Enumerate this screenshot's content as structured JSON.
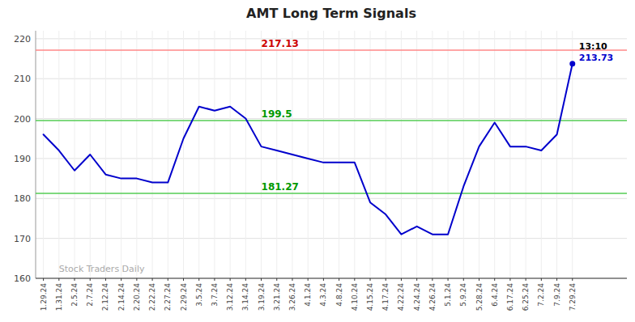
{
  "chart_data": {
    "type": "line",
    "title": "AMT Long Term Signals",
    "categories": [
      "1.29.24",
      "1.31.24",
      "2.5.24",
      "2.7.24",
      "2.12.24",
      "2.14.24",
      "2.20.24",
      "2.22.24",
      "2.27.24",
      "2.29.24",
      "3.5.24",
      "3.7.24",
      "3.12.24",
      "3.14.24",
      "3.19.24",
      "3.21.24",
      "3.26.24",
      "4.1.24",
      "4.3.24",
      "4.8.24",
      "4.10.24",
      "4.15.24",
      "4.17.24",
      "4.22.24",
      "4.24.24",
      "4.26.24",
      "5.1.24",
      "5.9.24",
      "5.28.24",
      "6.4.24",
      "6.17.24",
      "6.25.24",
      "7.2.24",
      "7.9.24",
      "7.29.24"
    ],
    "values": [
      196,
      192,
      187,
      191,
      186,
      185,
      185,
      184,
      184,
      195,
      203,
      202,
      203,
      200,
      193,
      192,
      191,
      190,
      189,
      189,
      189,
      179,
      176,
      171,
      173,
      171,
      171,
      183,
      193,
      199,
      193,
      193,
      192,
      196,
      213.73
    ],
    "color": "#0000cc",
    "ylim": [
      160,
      222
    ],
    "yticks": [
      160,
      170,
      180,
      190,
      200,
      210,
      220
    ],
    "grid": true,
    "hlines": [
      {
        "value": 217.13,
        "label": "217.13",
        "color": "#ff8888",
        "label_color": "#cc0000"
      },
      {
        "value": 199.5,
        "label": "199.5",
        "color": "#55cc55",
        "label_color": "#009900"
      },
      {
        "value": 181.27,
        "label": "181.27",
        "color": "#55cc55",
        "label_color": "#009900"
      }
    ],
    "annotations": [
      {
        "text": "13:10",
        "color": "#000000"
      },
      {
        "text": "213.73",
        "color": "#0000cc"
      }
    ],
    "watermark": "Stock Traders Daily",
    "watermark_color": "#aaaaaa"
  }
}
